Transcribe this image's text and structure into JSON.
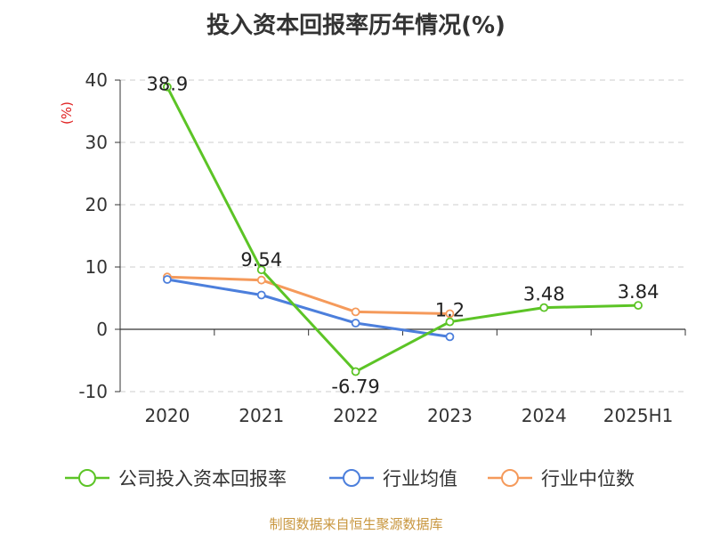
{
  "title": "投入资本回报率历年情况(%)",
  "footer": "制图数据来自恒生聚源数据库",
  "chart_data": {
    "type": "line",
    "title": "投入资本回报率历年情况(%)",
    "ylabel": "(%)",
    "xlabel": "",
    "categories": [
      "2020",
      "2021",
      "2022",
      "2023",
      "2024",
      "2025H1"
    ],
    "ylim": [
      -10,
      40
    ],
    "yticks": [
      -10,
      0,
      10,
      20,
      30,
      40
    ],
    "grid": true,
    "legend_position": "bottom",
    "series": [
      {
        "name": "公司投入资本回报率",
        "color": "#5cc426",
        "values": [
          38.9,
          9.54,
          -6.79,
          1.2,
          3.48,
          3.84
        ],
        "labels": [
          "38.9",
          "9.54",
          "-6.79",
          "1.2",
          "3.48",
          "3.84"
        ]
      },
      {
        "name": "行业均值",
        "color": "#4c7fdc",
        "values": [
          8.0,
          5.5,
          1.0,
          -1.2,
          null,
          null
        ]
      },
      {
        "name": "行业中位数",
        "color": "#f59a5b",
        "values": [
          8.4,
          7.9,
          2.8,
          2.5,
          null,
          null
        ]
      }
    ]
  }
}
